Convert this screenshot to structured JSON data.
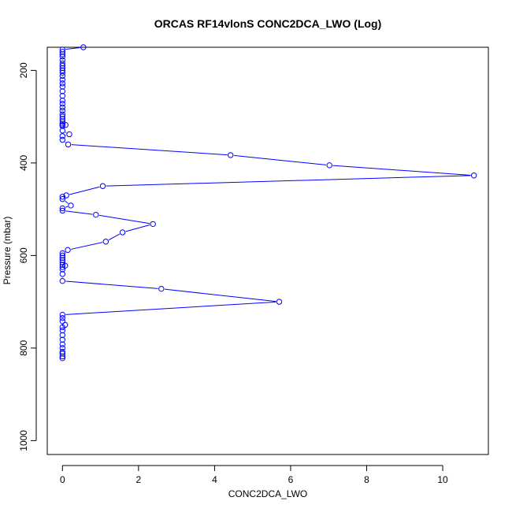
{
  "chart_data": {
    "type": "line",
    "title": "ORCAS RF14vlonS CONC2DCA_LWO (Log)",
    "xlabel": "CONC2DCA_LWO",
    "ylabel": "Pressure (mbar)",
    "xlim": [
      -0.4,
      11.2
    ],
    "ylim": [
      1030,
      150
    ],
    "y_reversed": true,
    "x_ticks": [
      0,
      2,
      4,
      6,
      8,
      10
    ],
    "y_ticks": [
      200,
      400,
      600,
      800,
      1000
    ],
    "grid": false,
    "legend": "none",
    "series_color": "#0000ff",
    "marker": "open-circle",
    "series": [
      {
        "x": [
          0.55,
          0,
          0,
          0,
          0,
          0,
          0,
          0,
          0,
          0,
          0,
          0,
          0,
          0,
          0,
          0,
          0,
          0,
          0,
          0,
          0,
          0,
          0,
          0,
          0,
          0,
          0,
          0,
          0.08,
          0,
          0.18,
          0,
          0,
          0.15,
          4.42,
          7.02,
          10.82,
          1.06,
          0.1,
          0,
          0,
          0.22,
          0,
          0,
          0.88,
          2.38,
          1.58,
          1.14,
          0.14,
          0,
          0,
          0,
          0,
          0,
          0,
          0.07,
          0,
          0,
          0,
          0,
          2.6,
          5.7,
          0,
          0,
          0,
          0.07,
          0,
          0,
          0,
          0,
          0,
          0,
          0,
          0,
          0,
          0
        ],
        "y": [
          150,
          155,
          160,
          165,
          170,
          178,
          185,
          190,
          195,
          200,
          205,
          212,
          220,
          228,
          235,
          245,
          255,
          265,
          272,
          280,
          287,
          295,
          300,
          305,
          310,
          315,
          318,
          320,
          318,
          330,
          338,
          342,
          350,
          360,
          383,
          405,
          427,
          450,
          470,
          473,
          478,
          492,
          498,
          503,
          512,
          532,
          550,
          570,
          588,
          595,
          600,
          605,
          610,
          615,
          620,
          622,
          625,
          630,
          640,
          655,
          672,
          700,
          728,
          735,
          742,
          750,
          755,
          762,
          772,
          782,
          792,
          800,
          808,
          812,
          818,
          822
        ]
      }
    ]
  }
}
